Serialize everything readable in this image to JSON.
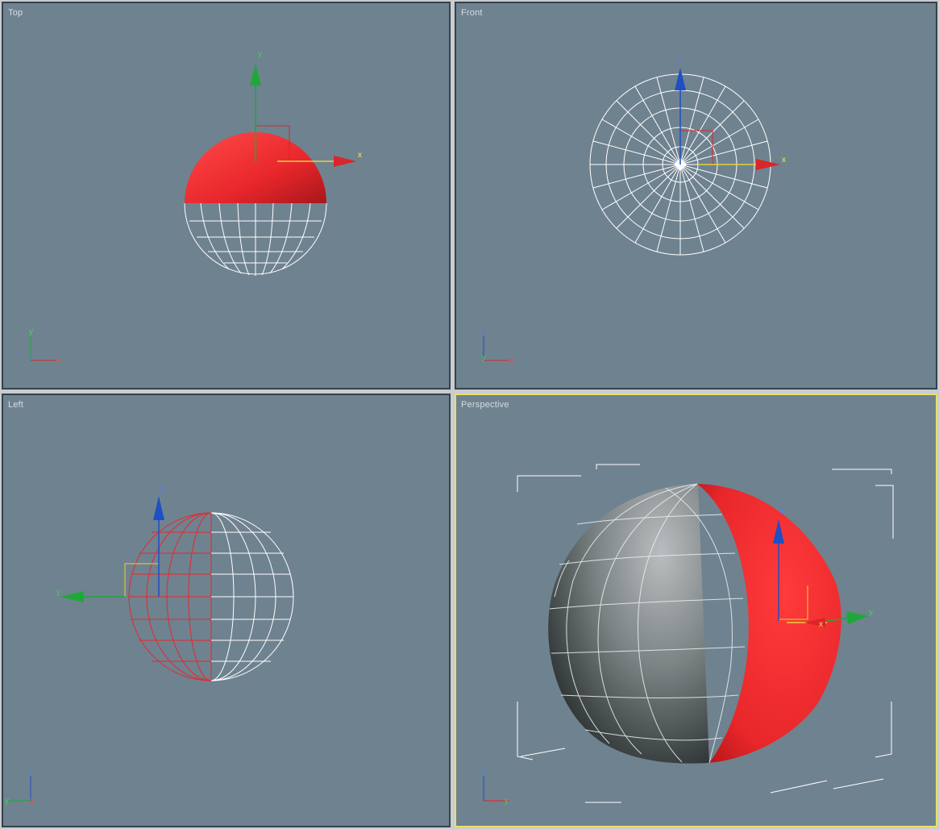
{
  "viewports": {
    "top": {
      "label": "Top"
    },
    "front": {
      "label": "Front"
    },
    "left": {
      "label": "Left"
    },
    "perspective": {
      "label": "Perspective",
      "active": true
    }
  },
  "axes": {
    "x": "x",
    "y": "y",
    "z": "z"
  },
  "colors": {
    "viewport_bg": "#6f8290",
    "viewport_border": "#34424c",
    "active_border": "#e8df6a",
    "selected_mesh": "#e8272b",
    "wireframe": "#ffffff",
    "axis_x": "#d8262a",
    "axis_y": "#1fa83a",
    "axis_z": "#1e4fc4",
    "gizmo_plane": "#e6d23a"
  }
}
